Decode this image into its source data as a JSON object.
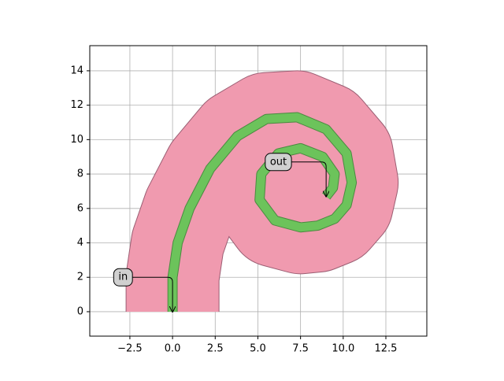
{
  "chart_data": {
    "type": "paths",
    "xlim": [
      -4.85,
      14.9
    ],
    "ylim": [
      -1.42,
      15.46
    ],
    "xticks": [
      {
        "value": -2.5,
        "label": "−2.5"
      },
      {
        "value": 0,
        "label": "0.0"
      },
      {
        "value": 2.5,
        "label": "2.5"
      },
      {
        "value": 5,
        "label": "5.0"
      },
      {
        "value": 7.5,
        "label": "7.5"
      },
      {
        "value": 10,
        "label": "10.0"
      },
      {
        "value": 12.5,
        "label": "12.5"
      }
    ],
    "yticks": [
      0,
      2,
      4,
      6,
      8,
      10,
      12,
      14
    ],
    "grid": true,
    "paths": [
      {
        "color": "#f09aaf",
        "edge": "#9b5e73",
        "width": 5.4,
        "x": [
          0,
          0,
          0.3,
          1,
          2.2,
          3.8,
          5.5,
          7.3,
          9,
          10.2,
          10.5,
          10.2,
          9.5,
          8.5,
          7.5,
          6,
          5.1,
          5.2,
          6.2,
          7.5,
          8.8,
          9.5,
          9.4,
          9
        ],
        "y": [
          0,
          2,
          4,
          6,
          8.3,
          10.2,
          11.2,
          11.3,
          10.6,
          9.2,
          7.5,
          6.2,
          5.4,
          5,
          4.9,
          5.3,
          6.5,
          8,
          9.2,
          9.5,
          9,
          8,
          7.2,
          6.7
        ]
      },
      {
        "color": "#6cc35b",
        "edge": "#4a8a40",
        "width": 0.5,
        "x": [
          0,
          0,
          0.3,
          1,
          2.2,
          3.8,
          5.5,
          7.3,
          9,
          10.2,
          10.5,
          10.2,
          9.5,
          8.5,
          7.5,
          6,
          5.1,
          5.2,
          6.2,
          7.5,
          8.8,
          9.5,
          9.4,
          9
        ],
        "y": [
          0,
          2,
          4,
          6,
          8.3,
          10.2,
          11.2,
          11.3,
          10.6,
          9.2,
          7.5,
          6.2,
          5.4,
          5,
          4.9,
          5.3,
          6.5,
          8,
          9.2,
          9.5,
          9,
          8,
          7.2,
          6.7
        ]
      }
    ],
    "annotations": [
      {
        "text": "in",
        "xy": [
          0,
          0
        ],
        "xytext": [
          -2.9,
          2
        ]
      },
      {
        "text": "out",
        "xy": [
          9,
          6.7
        ],
        "xytext": [
          6.2,
          8.7
        ]
      }
    ]
  }
}
